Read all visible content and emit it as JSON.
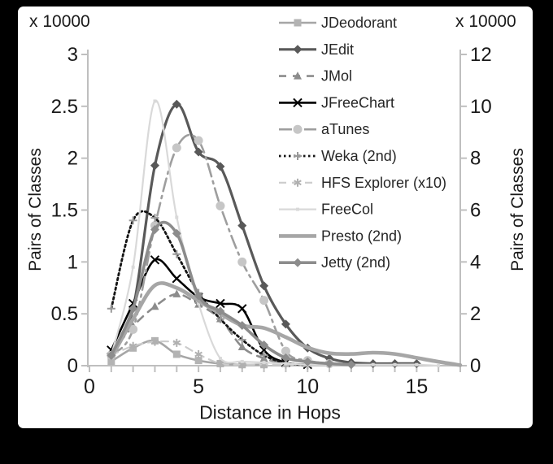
{
  "frame": {
    "background": "#000000",
    "card_background": "#ffffff",
    "axis_color": "#bfbfbf",
    "text_color": "#1a1a1a"
  },
  "chart_data": {
    "type": "line",
    "title": "",
    "xlabel": "Distance in Hops",
    "ylabel_left": "Pairs of Classes",
    "ylabel_right": "Pairs of Classes",
    "left_axis_multiplier": "x 10000",
    "right_axis_multiplier": "x 10000",
    "x_range": [
      0,
      17
    ],
    "x_major_ticks": [
      0,
      5,
      10,
      15
    ],
    "x_minor_tick_step": 1,
    "left_ylim": [
      0,
      3
    ],
    "left_tick_labels": [
      "0",
      "0.5",
      "1",
      "1.5",
      "2",
      "2.5",
      "3"
    ],
    "left_tick_values": [
      0,
      0.5,
      1,
      1.5,
      2,
      2.5,
      3
    ],
    "right_ylim": [
      0,
      12
    ],
    "right_tick_values": [
      0,
      2,
      4,
      6,
      8,
      10,
      12
    ],
    "grid": false,
    "legend_position": "top-right-inside",
    "x_start": 1,
    "series": [
      {
        "name": "JDeodorant",
        "axis": "left",
        "color": "#a6a6a6",
        "line_width": 2.6,
        "dash": null,
        "marker": "square",
        "marker_color": "#b3b3b3",
        "values": [
          0.04,
          0.17,
          0.24,
          0.11,
          0.05,
          0.02,
          0.01,
          0.01
        ]
      },
      {
        "name": "JEdit",
        "axis": "left",
        "color": "#595959",
        "line_width": 3.2,
        "dash": null,
        "marker": "diamond",
        "marker_color": "#595959",
        "values": [
          0.1,
          0.55,
          1.93,
          2.52,
          2.06,
          1.92,
          1.35,
          0.77,
          0.4,
          0.17,
          0.07,
          0.03,
          0.02,
          0.02,
          0.02
        ]
      },
      {
        "name": "JMol",
        "axis": "left",
        "color": "#8c8c8c",
        "line_width": 2.6,
        "dash": "9 8",
        "marker": "triangle",
        "marker_color": "#8c8c8c",
        "values": [
          0.12,
          0.38,
          0.57,
          0.69,
          0.59,
          0.45,
          0.18,
          0.07,
          0.02
        ]
      },
      {
        "name": "JFreeChart",
        "axis": "left",
        "color": "#000000",
        "line_width": 2.6,
        "dash": null,
        "marker": "xcross",
        "marker_color": "#000000",
        "values": [
          0.15,
          0.6,
          1.02,
          0.84,
          0.66,
          0.6,
          0.55,
          0.15,
          0.03,
          0.01
        ]
      },
      {
        "name": "aTunes",
        "axis": "left",
        "color": "#9e9e9e",
        "line_width": 2.6,
        "dash": "16 6 3 6",
        "marker": "circle",
        "marker_color": "#c6c6c6",
        "values": [
          0.1,
          0.35,
          1.35,
          2.1,
          2.17,
          1.54,
          1.0,
          0.63,
          0.14,
          0.05,
          0.02
        ]
      },
      {
        "name": "Weka (2nd)",
        "axis": "right",
        "color": "#141414",
        "line_width": 2.8,
        "dash": "2.5 3.5",
        "marker": "plus",
        "marker_color": "#999999",
        "values": [
          2.2,
          5.6,
          5.7,
          4.3,
          2.8,
          1.8,
          1.0,
          0.4,
          0.1,
          0.02
        ]
      },
      {
        "name": "HFS Explorer (x10)",
        "axis": "left",
        "color": "#cccccc",
        "line_width": 2.2,
        "dash": "9 7",
        "marker": "asterisk",
        "marker_color": "#b0b0b0",
        "values": [
          0.1,
          0.19,
          0.23,
          0.22,
          0.11,
          0.02,
          0.01,
          0.01,
          0.01,
          0.01
        ]
      },
      {
        "name": "FreeCol",
        "axis": "left",
        "color": "#d9d9d9",
        "line_width": 2.2,
        "dash": null,
        "marker": "smallsquare",
        "marker_color": "#d9d9d9",
        "values": [
          0.1,
          0.95,
          2.55,
          1.43,
          0.6,
          0.07,
          0.04,
          0.03,
          0.02,
          0.01,
          0.01,
          0.01,
          0.01,
          0.01,
          0.01,
          0.0
        ]
      },
      {
        "name": "Presto (2nd)",
        "axis": "right",
        "color": "#a6a6a6",
        "line_width": 4.6,
        "dash": null,
        "marker": "none",
        "marker_color": "#a6a6a6",
        "values": [
          0.3,
          1.8,
          3.1,
          3.0,
          2.5,
          2.0,
          1.55,
          1.45,
          1.1,
          0.7,
          0.48,
          0.45,
          0.5,
          0.45,
          0.3,
          0.15,
          0.02
        ]
      },
      {
        "name": "Jetty (2nd)",
        "axis": "right",
        "color": "#8c8c8c",
        "line_width": 3.6,
        "dash": null,
        "marker": "diamond",
        "marker_color": "#8c8c8c",
        "values": [
          0.4,
          2.2,
          5.25,
          5.1,
          2.7,
          2.1,
          1.55,
          0.8,
          0.3,
          0.15,
          0.08,
          0.04
        ]
      }
    ]
  }
}
